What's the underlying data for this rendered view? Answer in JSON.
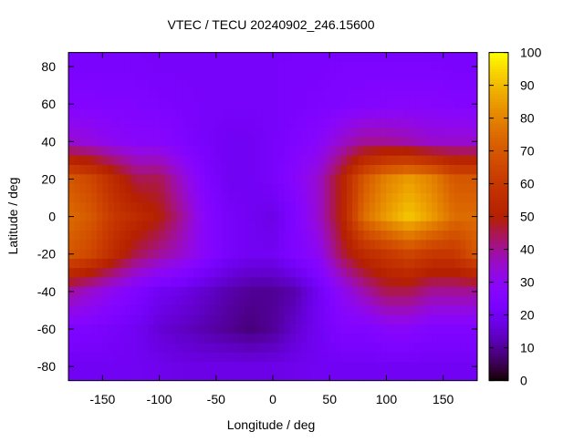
{
  "chart_data": {
    "type": "heatmap",
    "title": "VTEC / TECU 20240902_246.15600",
    "xlabel": "Longitude / deg",
    "ylabel": "Latitude / deg",
    "xlim": [
      -180,
      180
    ],
    "ylim": [
      -87.5,
      87.5
    ],
    "xticks": [
      -150,
      -100,
      -50,
      0,
      50,
      100,
      150
    ],
    "yticks": [
      -80,
      -60,
      -40,
      -20,
      0,
      20,
      40,
      60,
      80
    ],
    "colorbar": {
      "range": [
        0,
        100
      ],
      "ticks": [
        0,
        10,
        20,
        30,
        40,
        50,
        60,
        70,
        80,
        90,
        100
      ]
    },
    "lon": [
      -180,
      -160,
      -140,
      -120,
      -100,
      -80,
      -60,
      -40,
      -20,
      0,
      20,
      40,
      60,
      80,
      100,
      120,
      140,
      160,
      180
    ],
    "lat": [
      90,
      80,
      60,
      40,
      20,
      0,
      -20,
      -40,
      -60,
      -80,
      -90
    ],
    "values": [
      [
        22,
        22,
        22,
        22,
        22,
        22,
        22,
        22,
        22,
        22,
        22,
        22,
        22,
        22,
        22,
        22,
        22,
        22,
        22
      ],
      [
        23,
        23,
        23,
        23,
        22,
        22,
        22,
        22,
        22,
        22,
        23,
        23,
        24,
        24,
        24,
        24,
        24,
        23,
        23
      ],
      [
        26,
        26,
        25,
        25,
        24,
        23,
        22,
        22,
        22,
        22,
        23,
        24,
        25,
        26,
        27,
        27,
        27,
        26,
        26
      ],
      [
        35,
        33,
        30,
        28,
        28,
        25,
        22,
        20,
        20,
        22,
        25,
        28,
        35,
        40,
        40,
        38,
        35,
        35,
        35
      ],
      [
        70,
        65,
        55,
        45,
        45,
        35,
        25,
        20,
        20,
        22,
        28,
        35,
        50,
        70,
        80,
        85,
        80,
        70,
        70
      ],
      [
        75,
        70,
        60,
        55,
        50,
        40,
        28,
        22,
        20,
        18,
        25,
        35,
        50,
        75,
        85,
        92,
        85,
        75,
        75
      ],
      [
        70,
        65,
        55,
        45,
        40,
        35,
        28,
        22,
        20,
        20,
        25,
        30,
        45,
        55,
        60,
        65,
        60,
        60,
        70
      ],
      [
        40,
        35,
        30,
        25,
        20,
        18,
        15,
        12,
        10,
        10,
        12,
        20,
        30,
        38,
        45,
        45,
        40,
        40,
        40
      ],
      [
        25,
        24,
        22,
        20,
        16,
        14,
        12,
        10,
        8,
        10,
        15,
        20,
        25,
        25,
        28,
        28,
        25,
        25,
        25
      ],
      [
        20,
        20,
        20,
        20,
        19,
        18,
        18,
        18,
        18,
        18,
        19,
        20,
        20,
        20,
        20,
        20,
        20,
        20,
        20
      ],
      [
        20,
        20,
        20,
        20,
        19,
        18,
        18,
        18,
        18,
        18,
        19,
        20,
        20,
        20,
        20,
        20,
        20,
        20,
        20
      ]
    ]
  }
}
